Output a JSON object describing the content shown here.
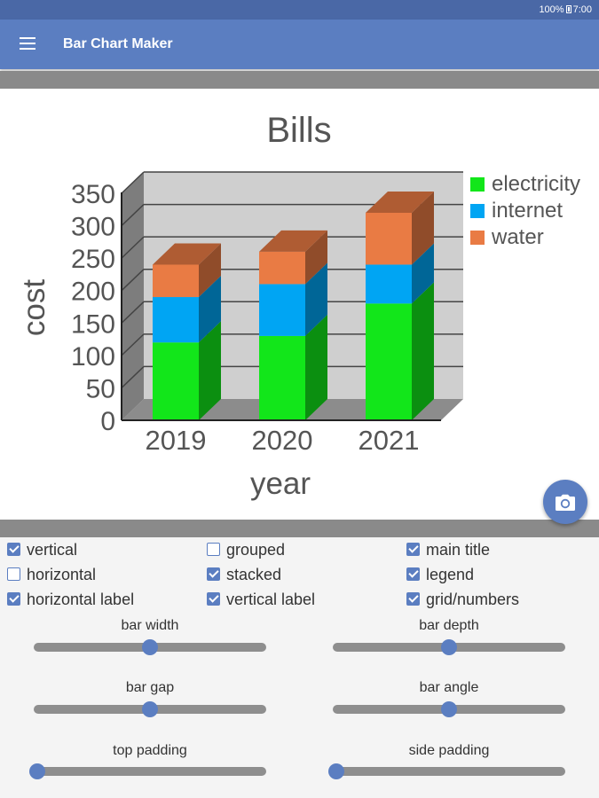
{
  "status": {
    "battery": "100%",
    "time": "7:00"
  },
  "app": {
    "title": "Bar Chart Maker"
  },
  "colors": {
    "primary": "#5b7ec1",
    "electricity": "#12e61a",
    "internet": "#00a5f3",
    "water": "#e97b44"
  },
  "chart_data": {
    "type": "bar",
    "stacked": true,
    "three_d": true,
    "title": "Bills",
    "xlabel": "year",
    "ylabel": "cost",
    "categories": [
      "2019",
      "2020",
      "2021"
    ],
    "series": [
      {
        "name": "electricity",
        "color": "#12e61a",
        "values": [
          120,
          130,
          180
        ]
      },
      {
        "name": "internet",
        "color": "#00a5f3",
        "values": [
          70,
          80,
          60
        ]
      },
      {
        "name": "water",
        "color": "#e97b44",
        "values": [
          50,
          50,
          80
        ]
      }
    ],
    "yticks": [
      "0",
      "50",
      "100",
      "150",
      "200",
      "250",
      "300",
      "350"
    ],
    "ylim": [
      0,
      350
    ],
    "grid": true,
    "legend": "right"
  },
  "options": [
    {
      "label": "vertical",
      "checked": true
    },
    {
      "label": "grouped",
      "checked": false
    },
    {
      "label": "main title",
      "checked": true
    },
    {
      "label": "horizontal",
      "checked": false
    },
    {
      "label": "stacked",
      "checked": true
    },
    {
      "label": "legend",
      "checked": true
    },
    {
      "label": "horizontal label",
      "checked": true
    },
    {
      "label": "vertical label",
      "checked": true
    },
    {
      "label": "grid/numbers",
      "checked": true
    }
  ],
  "sliders": [
    {
      "label": "bar width",
      "value": 0.5
    },
    {
      "label": "bar depth",
      "value": 0.5
    },
    {
      "label": "bar gap",
      "value": 0.5
    },
    {
      "label": "bar angle",
      "value": 0.5
    },
    {
      "label": "top padding",
      "value": 0.0
    },
    {
      "label": "side padding",
      "value": 0.0
    }
  ]
}
